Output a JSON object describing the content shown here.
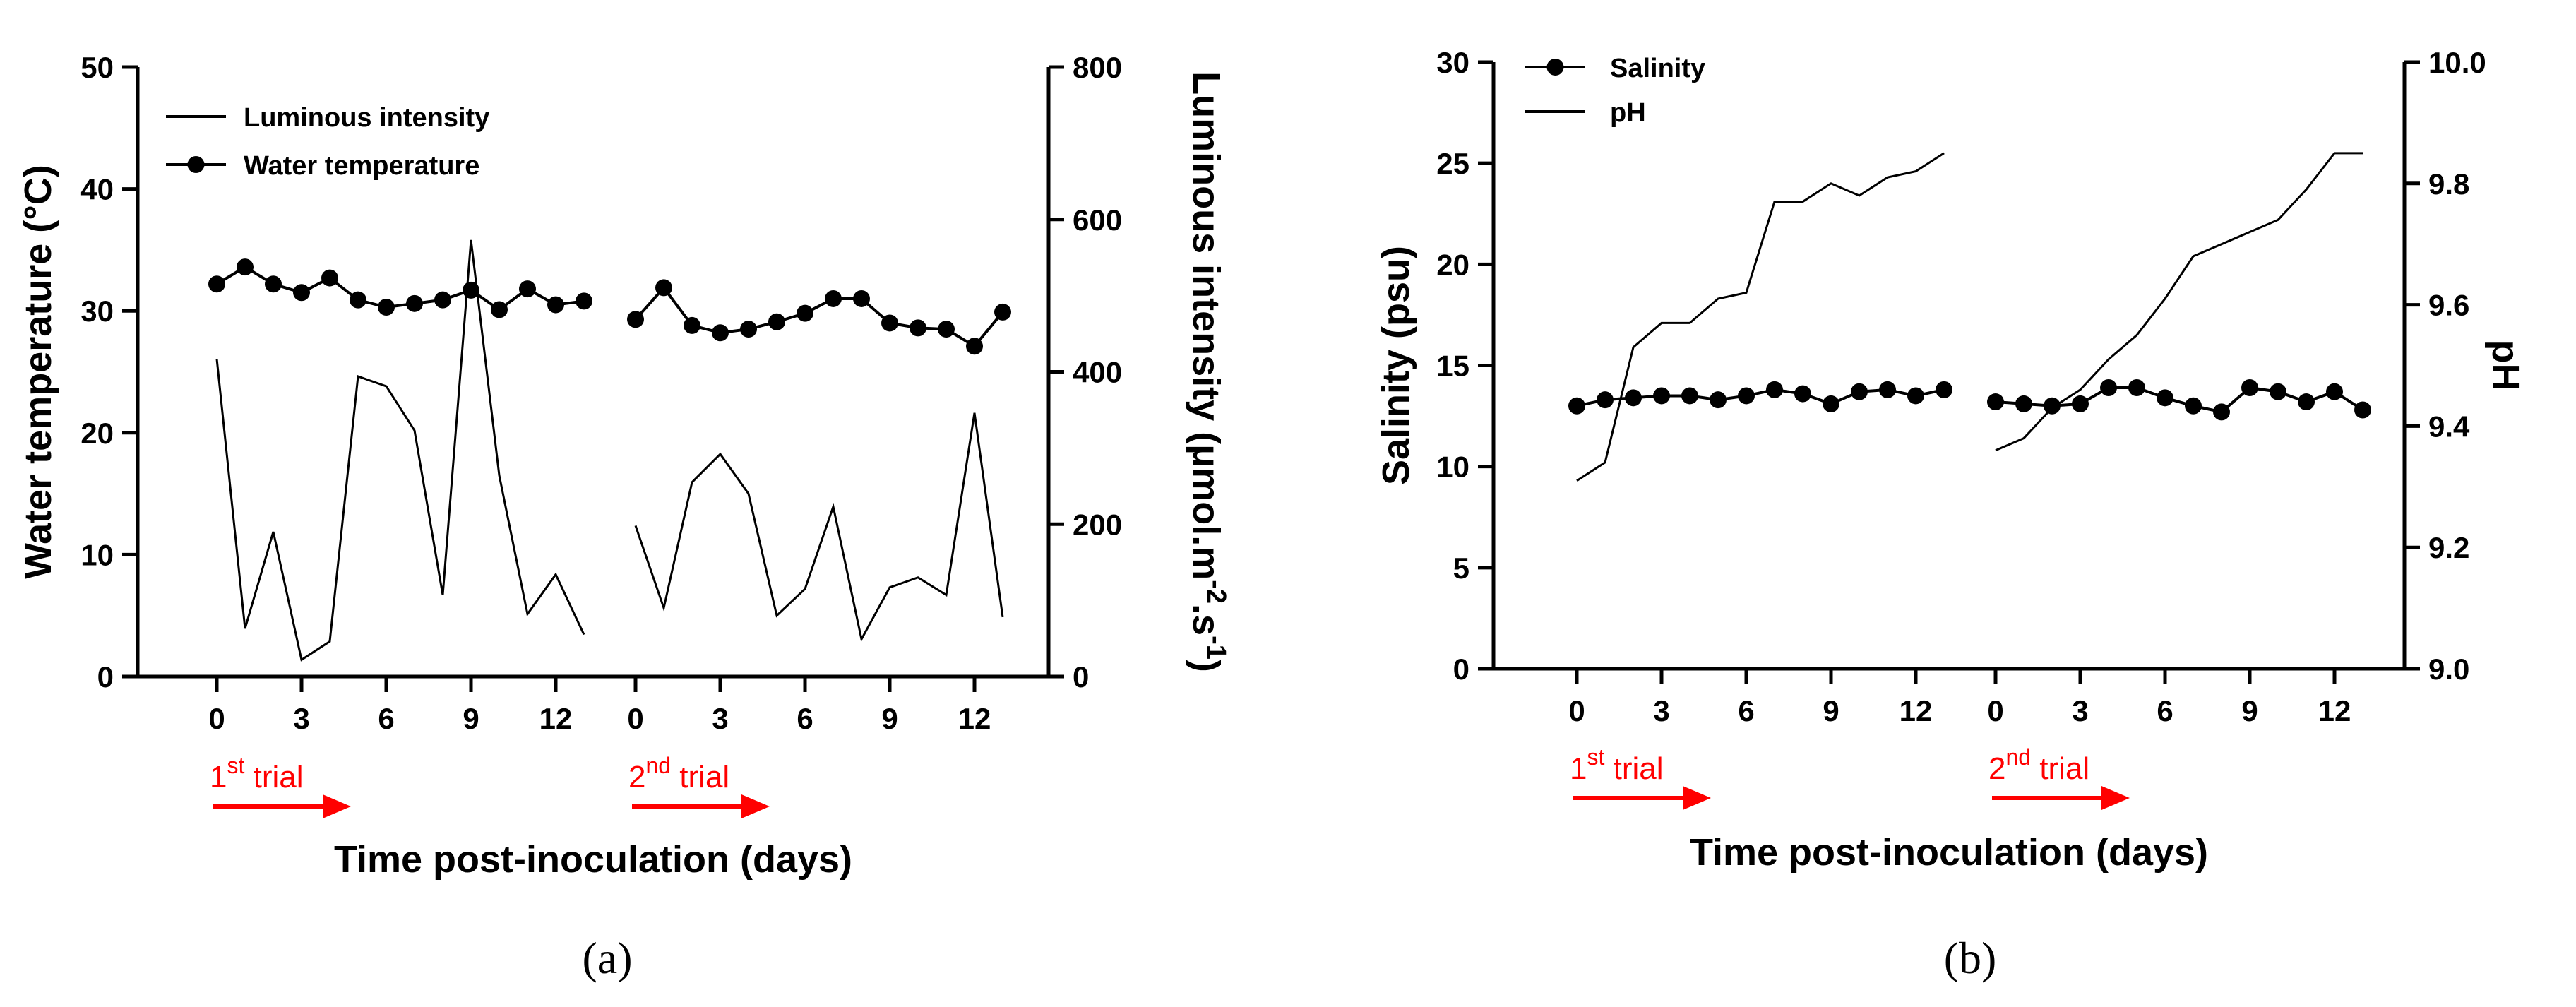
{
  "chart_data": [
    {
      "type": "line",
      "panel": "(a)",
      "xlabel": "Time post-inoculation (days)",
      "ylabel_left": "Water temperature (°C)",
      "ylabel_right": "Luminous intensity (μmol.m-2.s-1)",
      "ylim_left": [
        0,
        50
      ],
      "yticks_left": [
        0,
        10,
        20,
        30,
        40,
        50
      ],
      "ylim_right": [
        0,
        800
      ],
      "yticks_right": [
        0,
        200,
        400,
        600,
        800
      ],
      "x_ticks": [
        0,
        3,
        6,
        9,
        12
      ],
      "x": [
        0,
        1,
        2,
        3,
        4,
        5,
        6,
        7,
        8,
        9,
        10,
        11,
        12,
        13
      ],
      "trials": [
        {
          "base": "1",
          "sup": "st",
          "word": " trial"
        },
        {
          "base": "2",
          "sup": "nd",
          "word": " trial"
        }
      ],
      "legend": [
        "Luminous intensity",
        "Water temperature"
      ],
      "series": [
        {
          "name": "Water temperature",
          "axis": "left",
          "marker": "circle",
          "trial1": [
            32.2,
            33.6,
            32.2,
            31.5,
            32.7,
            30.9,
            30.3,
            30.6,
            30.9,
            31.7,
            30.1,
            31.8,
            30.5,
            30.8
          ],
          "trial2": [
            29.3,
            31.9,
            28.8,
            28.2,
            28.5,
            29.1,
            29.8,
            31.0,
            31.0,
            29.0,
            28.6,
            28.5,
            27.1,
            29.9
          ]
        },
        {
          "name": "Luminous intensity",
          "axis": "right",
          "marker": "none",
          "trial1": [
            417,
            63,
            190,
            22,
            46,
            394,
            381,
            323,
            107,
            573,
            264,
            82,
            134,
            55
          ],
          "trial2": [
            198,
            90,
            255,
            292,
            240,
            80,
            115,
            223,
            49,
            117,
            130,
            107,
            346,
            78
          ]
        }
      ]
    },
    {
      "type": "line",
      "panel": "(b)",
      "xlabel": "Time post-inoculation (days)",
      "ylabel_left": "Salinity (psu)",
      "ylabel_right": "pH",
      "ylim_left": [
        0,
        30
      ],
      "yticks_left": [
        0,
        5,
        10,
        15,
        20,
        25,
        30
      ],
      "ylim_right": [
        9.0,
        10.0
      ],
      "yticks_right": [
        "9.0",
        "9.2",
        "9.4",
        "9.6",
        "9.8",
        "10.0"
      ],
      "x_ticks": [
        0,
        3,
        6,
        9,
        12
      ],
      "x": [
        0,
        1,
        2,
        3,
        4,
        5,
        6,
        7,
        8,
        9,
        10,
        11,
        12,
        13
      ],
      "trials": [
        {
          "base": "1",
          "sup": "st",
          "word": " trial"
        },
        {
          "base": "2",
          "sup": "nd",
          "word": " trial"
        }
      ],
      "legend": [
        "Salinity",
        "pH"
      ],
      "series": [
        {
          "name": "Salinity",
          "axis": "left",
          "marker": "circle",
          "trial1": [
            13.0,
            13.3,
            13.4,
            13.5,
            13.5,
            13.3,
            13.5,
            13.8,
            13.6,
            13.1,
            13.7,
            13.8,
            13.5,
            13.8
          ],
          "trial2": [
            13.2,
            13.1,
            13.0,
            13.1,
            13.9,
            13.9,
            13.4,
            13.0,
            12.7,
            13.9,
            13.7,
            13.2,
            13.7,
            12.8
          ]
        },
        {
          "name": "pH",
          "axis": "right",
          "marker": "none",
          "trial1": [
            9.31,
            9.34,
            9.53,
            9.57,
            9.57,
            9.61,
            9.62,
            9.77,
            9.77,
            9.8,
            9.78,
            9.81,
            9.82,
            9.85
          ],
          "trial2": [
            9.36,
            9.38,
            9.43,
            9.46,
            9.51,
            9.55,
            9.61,
            9.68,
            9.7,
            9.72,
            9.74,
            9.79,
            9.85,
            9.85
          ]
        }
      ]
    }
  ]
}
